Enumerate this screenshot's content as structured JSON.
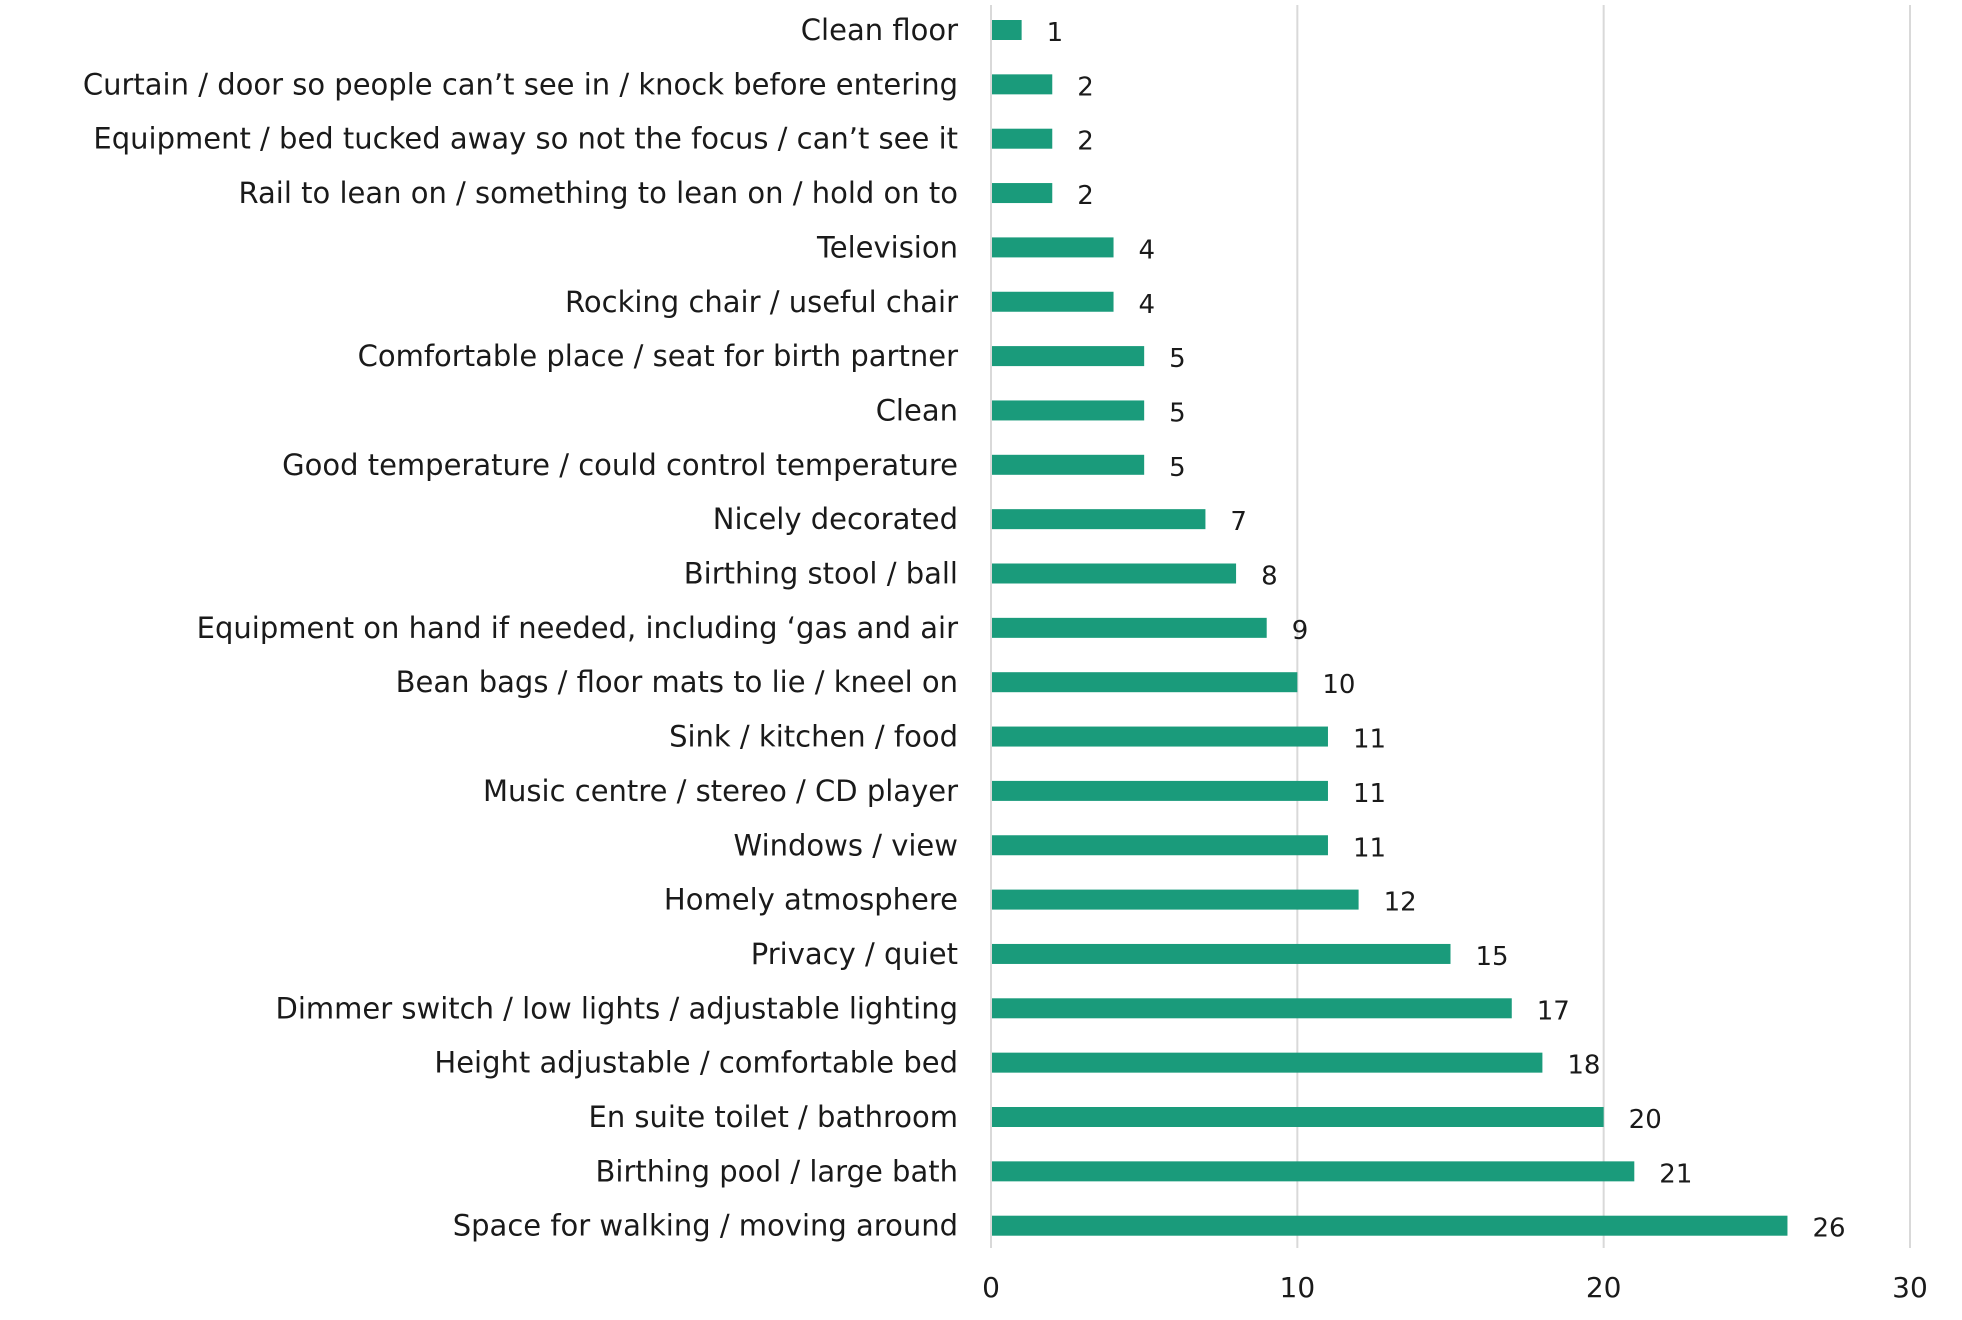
{
  "chart_data": {
    "type": "bar",
    "orientation": "horizontal",
    "title": "",
    "xlabel": "",
    "ylabel": "",
    "xlim": [
      0,
      30
    ],
    "x_ticks": [
      "0",
      "10",
      "20",
      "30"
    ],
    "x_tick_values": [
      0,
      10,
      20,
      30
    ],
    "grid": "vertical",
    "legend": "none",
    "bar_color": "#1a9b7b",
    "grid_color": "#d9d9d9",
    "text_color": "#1a1a1a",
    "categories": [
      "Clean floor",
      "Curtain / door so people can’t see in / knock before entering",
      "Equipment / bed tucked away so not the focus / can’t see it",
      "Rail to lean on / something to lean on / hold on to",
      "Television",
      "Rocking chair / useful chair",
      "Comfortable place / seat for birth partner",
      "Clean",
      "Good temperature / could control temperature",
      "Nicely decorated",
      "Birthing stool / ball",
      "Equipment on hand if needed, including ‘gas and air",
      "Bean bags / floor mats to lie / kneel on",
      "Sink / kitchen / food",
      "Music centre / stereo / CD player",
      "Windows / view",
      "Homely atmosphere",
      "Privacy / quiet",
      "Dimmer switch / low lights / adjustable lighting",
      "Height adjustable / comfortable bed",
      "En suite toilet / bathroom",
      "Birthing pool / large bath",
      "Space for walking / moving around"
    ],
    "values": [
      1,
      2,
      2,
      2,
      4,
      4,
      5,
      5,
      5,
      7,
      8,
      9,
      10,
      11,
      11,
      11,
      12,
      15,
      17,
      18,
      20,
      21,
      26
    ]
  }
}
